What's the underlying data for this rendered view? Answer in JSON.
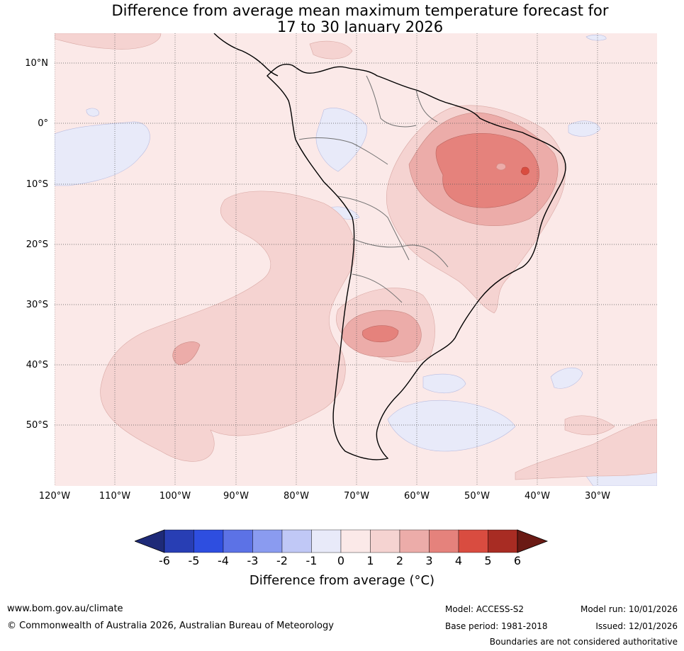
{
  "title_line1": "Difference from average mean maximum temperature forecast for",
  "title_line2": "17 to 30 January 2026",
  "lat_labels": [
    "10°N",
    "0°",
    "10°S",
    "20°S",
    "30°S",
    "40°S",
    "50°S"
  ],
  "lon_labels": [
    "120°W",
    "110°W",
    "100°W",
    "90°W",
    "80°W",
    "70°W",
    "60°W",
    "50°W",
    "40°W",
    "30°W"
  ],
  "colorbar": {
    "ticks": [
      "-6",
      "-5",
      "-4",
      "-3",
      "-2",
      "-1",
      "0",
      "1",
      "2",
      "3",
      "4",
      "5",
      "6"
    ],
    "colors": [
      "#1e2a78",
      "#283eb4",
      "#2e4ee0",
      "#5c72e6",
      "#8a9bf0",
      "#c0c8f6",
      "#e8eaf9",
      "#fbe9e8",
      "#f5d3d1",
      "#ecaca9",
      "#e5827c",
      "#d94c40",
      "#a82c23",
      "#6a1a14"
    ],
    "label": "Difference from average (°C)"
  },
  "footer": {
    "url": "www.bom.gov.au/climate",
    "copyright": "© Commonwealth of Australia 2026, Australian Bureau of Meteorology",
    "model": "Model: ACCESS-S2",
    "base_period": "Base period: 1981-2018",
    "model_run": "Model run: 10/01/2026",
    "issued": "Issued: 12/01/2026",
    "boundaries": "Boundaries are not considered authoritative"
  }
}
